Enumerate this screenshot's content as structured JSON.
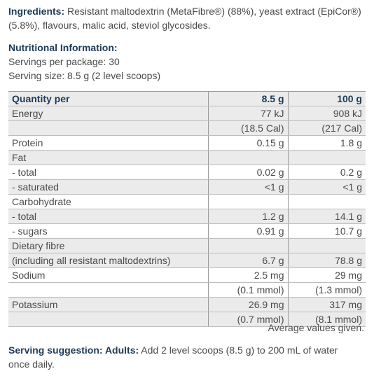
{
  "ingredients": {
    "label": "Ingredients:",
    "text": " Resistant maltodextrin (MetaFibre®) (88%), yeast extract (EpiCor®) (5.8%), flavours, malic acid, steviol glycosides."
  },
  "nutrition": {
    "title": "Nutritional Information:",
    "servings_per_package": "Servings per package: 30",
    "serving_size": "Serving size: 8.5 g (2 level scoops)"
  },
  "table": {
    "headers": [
      "Quantity per",
      "8.5 g",
      "100 g"
    ],
    "rows": [
      {
        "label": "Energy",
        "per_serving": "77 kJ",
        "per_100g": "908 kJ"
      },
      {
        "label": "",
        "per_serving": "(18.5 Cal)",
        "per_100g": "(217 Cal)"
      },
      {
        "label": "Protein",
        "per_serving": "0.15 g",
        "per_100g": "1.8 g"
      },
      {
        "label": "Fat",
        "per_serving": "",
        "per_100g": ""
      },
      {
        "label": "- total",
        "per_serving": "0.02 g",
        "per_100g": "0.2 g"
      },
      {
        "label": "- saturated",
        "per_serving": "<1 g",
        "per_100g": "<1 g"
      },
      {
        "label": "Carbohydrate",
        "per_serving": "",
        "per_100g": ""
      },
      {
        "label": "- total",
        "per_serving": "1.2 g",
        "per_100g": "14.1 g"
      },
      {
        "label": "- sugars",
        "per_serving": "0.91 g",
        "per_100g": "10.7 g"
      },
      {
        "label": "Dietary fibre",
        "per_serving": "",
        "per_100g": ""
      },
      {
        "label": "(including all resistant maltodextrins)",
        "per_serving": "6.7 g",
        "per_100g": "78.8 g"
      },
      {
        "label": "Sodium",
        "per_serving": "2.5 mg",
        "per_100g": "29 mg"
      },
      {
        "label": "",
        "per_serving": "(0.1 mmol)",
        "per_100g": "(1.3 mmol)"
      },
      {
        "label": "Potassium",
        "per_serving": "26.9 mg",
        "per_100g": "317 mg"
      },
      {
        "label": "",
        "per_serving": "(0.7 mmol)",
        "per_100g": "(8.1 mmol)"
      }
    ]
  },
  "note": "Average values given.",
  "suggestion": {
    "label": "Serving suggestion: Adults:",
    "text": " Add 2 level scoops (8.5 g) to 200 mL of water once daily."
  }
}
